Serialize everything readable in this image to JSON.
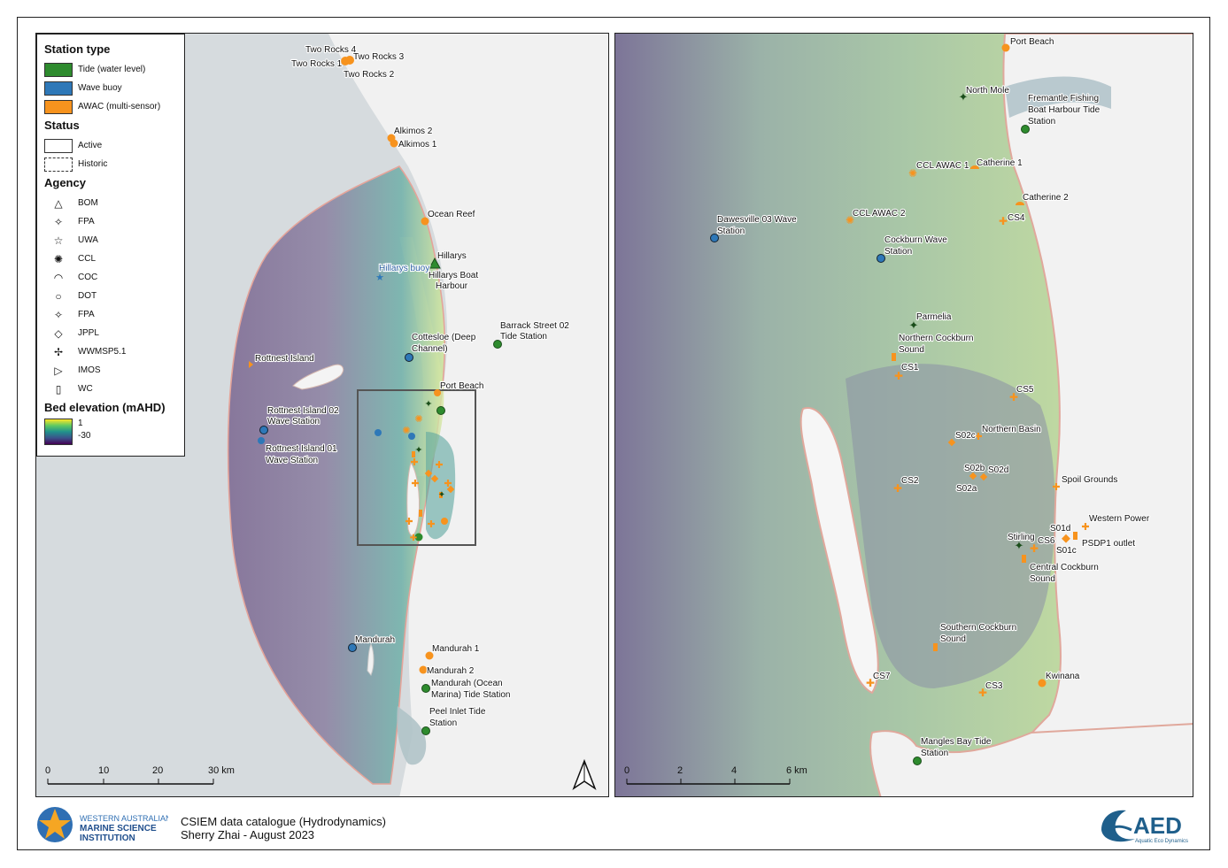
{
  "legend": {
    "station_type_heading": "Station type",
    "station_types": [
      {
        "label": "Tide (water level)",
        "color": "#2e8b2e"
      },
      {
        "label": "Wave buoy",
        "color": "#2e78b8"
      },
      {
        "label": "AWAC (multi-sensor)",
        "color": "#f7931e"
      }
    ],
    "status_heading": "Status",
    "statuses": [
      {
        "label": "Active",
        "style": "solid"
      },
      {
        "label": "Historic",
        "style": "dashed"
      }
    ],
    "agency_heading": "Agency",
    "agencies": [
      {
        "label": "BOM",
        "icon": "triangle-icon",
        "glyph": "△"
      },
      {
        "label": "FPA",
        "icon": "four-point-star-icon",
        "glyph": "✧"
      },
      {
        "label": "UWA",
        "icon": "star-icon",
        "glyph": "☆"
      },
      {
        "label": "CCL",
        "icon": "gear-icon",
        "glyph": "✺"
      },
      {
        "label": "COC",
        "icon": "half-circle-icon",
        "glyph": "◠"
      },
      {
        "label": "DOT",
        "icon": "circle-icon",
        "glyph": "○"
      },
      {
        "label": "FPA",
        "icon": "four-point-star-icon",
        "glyph": "✧"
      },
      {
        "label": "JPPL",
        "icon": "diamond-icon",
        "glyph": "◇"
      },
      {
        "label": "WWMSP5.1",
        "icon": "cross-icon",
        "glyph": "✢"
      },
      {
        "label": "IMOS",
        "icon": "triangle-right-icon",
        "glyph": "▷"
      },
      {
        "label": "WC",
        "icon": "rectangle-icon",
        "glyph": "▯"
      }
    ],
    "elevation_heading": "Bed elevation (mAHD)",
    "elevation_max": "1",
    "elevation_min": "-30"
  },
  "left_map": {
    "labels": {
      "two_rocks_4": "Two Rocks 4",
      "two_rocks_3": "Two Rocks 3",
      "two_rocks_1": "Two Rocks 1",
      "two_rocks_2": "Two Rocks 2",
      "alkimos_2": "Alkimos 2",
      "alkimos_1": "Alkimos 1",
      "ocean_reef": "Ocean Reef",
      "hillarys": "Hillarys",
      "hillarys_buoy": "Hillarys buoy",
      "hillarys_boat_1": "Hillarys Boat",
      "hillarys_boat_2": "Harbour",
      "barrack_1": "Barrack Street 02",
      "barrack_2": "Tide Station",
      "cottesloe_1": "Cottesloe (Deep",
      "cottesloe_2": "Channel)",
      "rottnest_island": "Rottnest Island",
      "port_beach": "Port Beach",
      "rottnest_02_1": "Rottnest Island 02",
      "rottnest_02_2": "Wave Station",
      "rottnest_01_1": "Rottnest Island 01",
      "rottnest_01_2": "Wave Station",
      "mandurah": "Mandurah",
      "mandurah_1": "Mandurah 1",
      "mandurah_2": "Mandurah 2",
      "mandurah_ocean_1": "Mandurah (Ocean",
      "mandurah_ocean_2": "Marina) Tide Station",
      "peel_1": "Peel Inlet Tide",
      "peel_2": "Station"
    },
    "scale": {
      "t0": "0",
      "t1": "10",
      "t2": "20",
      "t3": "30 km"
    }
  },
  "right_map": {
    "labels": {
      "port_beach": "Port Beach",
      "north_mole": "North Mole",
      "fremantle_1": "Fremantle Fishing",
      "fremantle_2": "Boat Harbour Tide",
      "fremantle_3": "Station",
      "ccl_awac_1": "CCL AWAC 1",
      "catherine_1": "Catherine 1",
      "catherine_2": "Catherine 2",
      "ccl_awac_2": "CCL AWAC 2",
      "cs4": "CS4",
      "dawesville_1": "Dawesville 03 Wave",
      "dawesville_2": "Station",
      "cockburn_wave_1": "Cockburn Wave",
      "cockburn_wave_2": "Station",
      "parmelia": "Parmelia",
      "northern_cockburn_1": "Northern Cockburn",
      "northern_cockburn_2": "Sound",
      "cs1": "CS1",
      "cs5": "CS5",
      "s02c": "S02c",
      "northern_basin": "Northern Basin",
      "s02b": "S02b",
      "s02d": "S02d",
      "s02a": "S02a",
      "cs2": "CS2",
      "spoil_grounds": "Spoil Grounds",
      "western_power": "Western Power",
      "s01d": "S01d",
      "stirling": "Stirling",
      "cs6": "CS6",
      "s01c": "S01c",
      "psdp1": "PSDP1 outlet",
      "central_cockburn_1": "Central Cockburn",
      "central_cockburn_2": "Sound",
      "southern_cockburn_1": "Southern Cockburn",
      "southern_cockburn_2": "Sound",
      "cs7": "CS7",
      "cs3": "CS3",
      "kwinana": "Kwinana",
      "mangles_1": "Mangles Bay Tide",
      "mangles_2": "Station"
    },
    "scale": {
      "t0": "0",
      "t1": "2",
      "t2": "4",
      "t3": "6 km"
    }
  },
  "footer": {
    "org_line1": "WESTERN AUSTRALIAN",
    "org_line2": "MARINE SCIENCE",
    "org_line3": "INSTITUTION",
    "title": "CSIEM data catalogue (Hydrodynamics)",
    "author": "Sherry Zhai - August 2023",
    "aed_text": "AED",
    "aed_sub": "Aquatic Eco Dynamics"
  },
  "colors": {
    "tide": "#2e8b2e",
    "wave": "#2e78b8",
    "awac": "#f7931e"
  }
}
